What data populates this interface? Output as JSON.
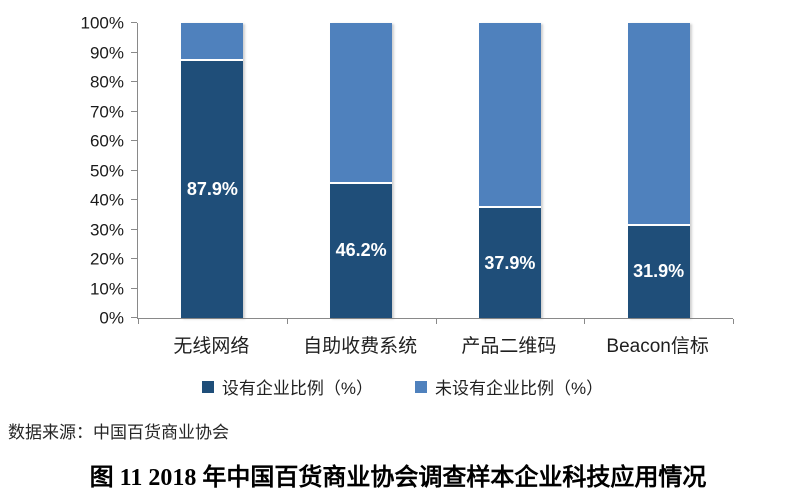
{
  "title": "图 11 2018 年中国百货商业协会调查样本企业科技应用情况",
  "source_note": "数据来源：中国百货商业协会",
  "colors": {
    "dark_blue": "#1F4E79",
    "light_blue": "#4F81BD",
    "axis_gray": "#898989",
    "value_label_text": "#FFFFFF"
  },
  "chart_data": {
    "type": "bar",
    "subtype": "stacked-100-percent-column",
    "categories": [
      "无线网络",
      "自助收费系统",
      "产品二维码",
      "Beacon信标"
    ],
    "series": [
      {
        "name": "设有企业比例（%）",
        "values": [
          87.9,
          46.2,
          37.9,
          31.9
        ],
        "color": "#1F4E79"
      },
      {
        "name": "未设有企业比例（%）",
        "values": [
          12.1,
          53.8,
          62.1,
          68.1
        ],
        "color": "#4F81BD"
      }
    ],
    "value_labels": [
      "87.9%",
      "46.2%",
      "37.9%",
      "31.9%"
    ],
    "y_ticks": [
      "100%",
      "90%",
      "80%",
      "70%",
      "60%",
      "50%",
      "40%",
      "30%",
      "20%",
      "10%",
      "0%"
    ],
    "ylim": [
      0,
      100
    ],
    "grid": false,
    "legend_position": "bottom"
  }
}
